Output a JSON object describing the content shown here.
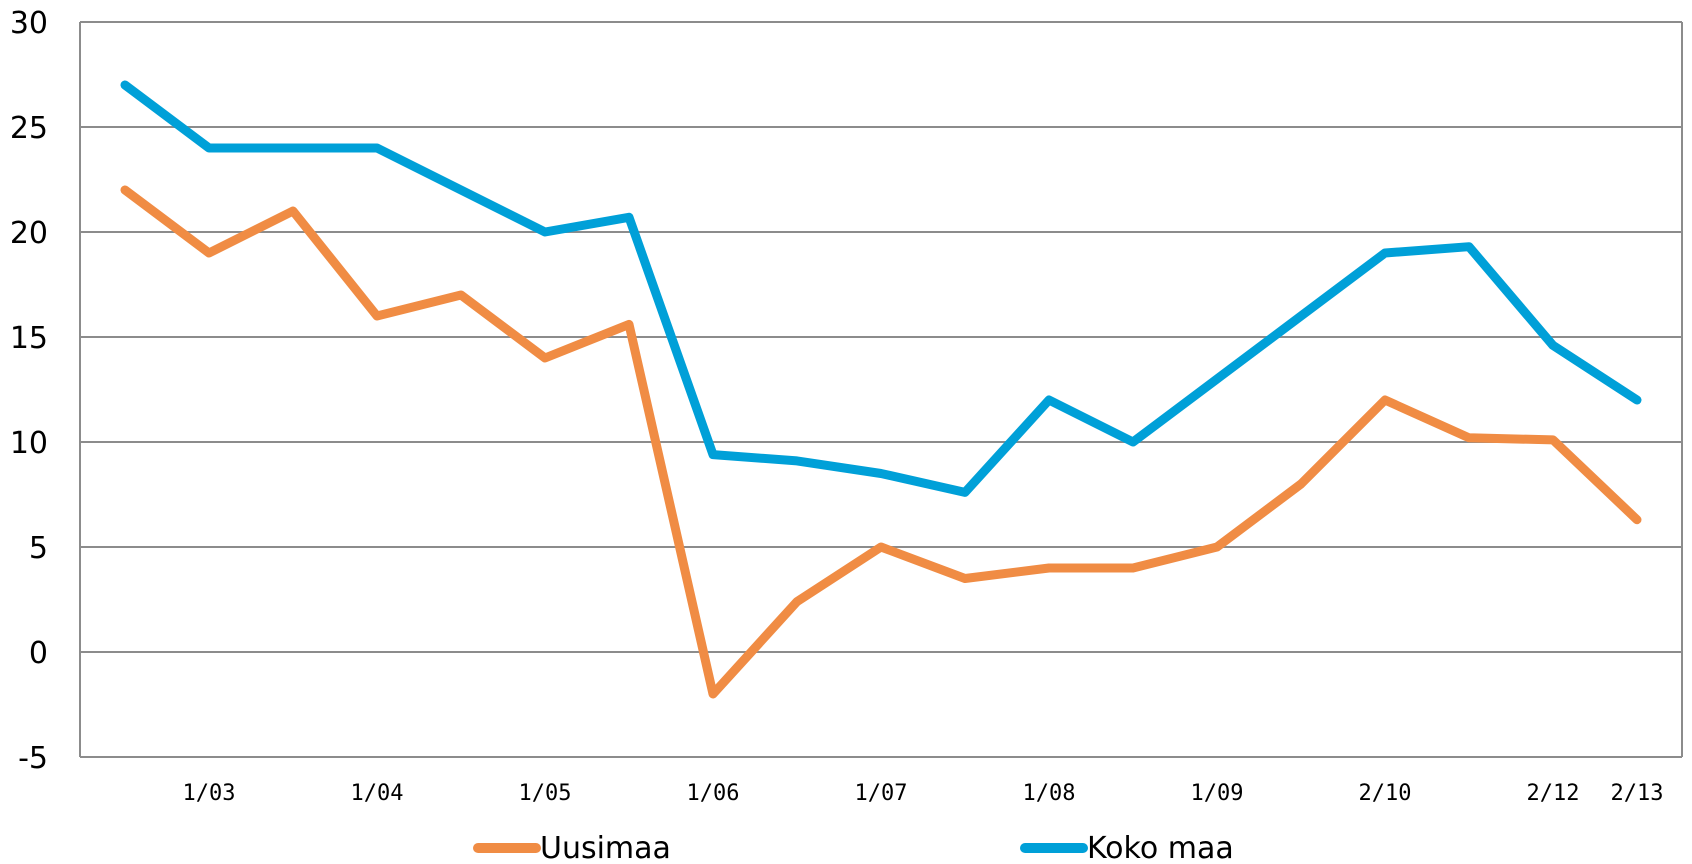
{
  "chart_data": {
    "type": "line",
    "title": "",
    "xlabel": "",
    "ylabel": "",
    "ylim": [
      -5,
      30
    ],
    "yticks": [
      "-5",
      "0",
      "5",
      "10",
      "15",
      "20",
      "25",
      "30"
    ],
    "grid": "horizontal",
    "legend": "bottom",
    "x_tick_labels": [
      {
        "label": "1/03",
        "index": 1
      },
      {
        "label": "1/04",
        "index": 3
      },
      {
        "label": "1/05",
        "index": 5
      },
      {
        "label": "1/06",
        "index": 7
      },
      {
        "label": "1/07",
        "index": 9
      },
      {
        "label": "1/08",
        "index": 11
      },
      {
        "label": "1/09",
        "index": 13
      },
      {
        "label": "2/10",
        "index": 15
      },
      {
        "label": "2/12",
        "index": 17
      },
      {
        "label": "2/13",
        "index": 18
      }
    ],
    "series": [
      {
        "name": "Uusimaa",
        "color": "#F08C44",
        "values": [
          22,
          19,
          21,
          16,
          17,
          14,
          15.6,
          -2,
          2.4,
          5,
          3.5,
          4,
          4,
          5,
          8,
          12,
          10.2,
          10.1,
          6.3
        ]
      },
      {
        "name": "Koko maa",
        "color": "#00A0D8",
        "values": [
          27,
          24,
          24,
          24,
          22,
          20,
          20.7,
          9.4,
          9.1,
          8.5,
          7.6,
          12,
          10,
          13,
          16,
          19,
          19.3,
          14.6,
          12
        ]
      }
    ]
  }
}
